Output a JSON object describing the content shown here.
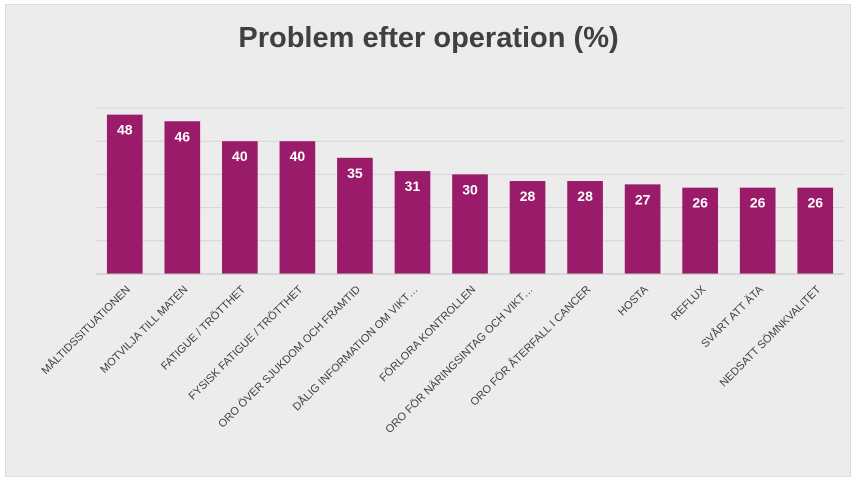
{
  "chart_data": {
    "type": "bar",
    "title": "Problem efter operation (%)",
    "categories": [
      "MÅLTIDSSITUATIONEN",
      "MOTVILJA TILL MATEN",
      "FATIGUE / TRÖTTHET",
      "FYSISK FATIGUE / TRÖTTHET",
      "ORO ÖVER SJUKDOM OCH FRAMTID",
      "DÅLIG INFORMATION OM VIKT…",
      "FÖRLORA KONTROLLEN",
      "ORO FÖR NÄRINGSINTAG OCH VIKT…",
      "ORO FÖR ÅTERFALL I CANCER",
      "HOSTA",
      "REFLUX",
      "SVÅRT ATT ÄTA",
      "NEDSATT SÖMNKVALITET"
    ],
    "values": [
      48,
      46,
      40,
      40,
      35,
      31,
      30,
      28,
      28,
      27,
      26,
      26,
      26
    ],
    "xlabel": "",
    "ylabel": "",
    "ylim": [
      0,
      50
    ],
    "grid": true,
    "legend": "none",
    "bar_color": "#9b1b6b"
  }
}
